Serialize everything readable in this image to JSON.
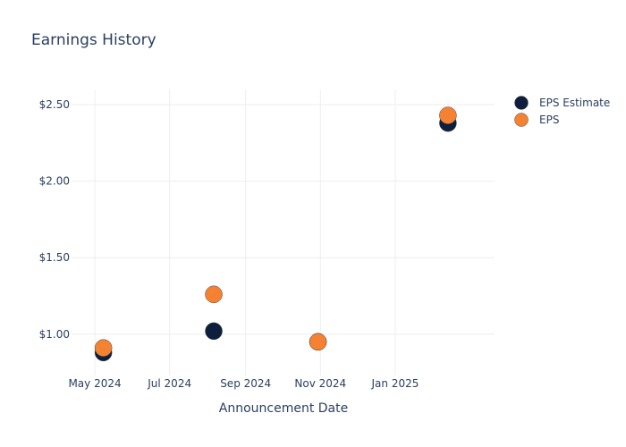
{
  "chart_data": {
    "type": "scatter",
    "title": "Earnings History",
    "xlabel": "Announcement Date",
    "ylabel": "",
    "x_type": "date",
    "xlim": [
      "2024-04-12",
      "2025-03-23"
    ],
    "ylim": [
      0.73,
      2.6
    ],
    "x_ticks": [
      {
        "date": "2024-05-01",
        "label": "May 2024"
      },
      {
        "date": "2024-07-01",
        "label": "Jul 2024"
      },
      {
        "date": "2024-09-01",
        "label": "Sep 2024"
      },
      {
        "date": "2024-11-01",
        "label": "Nov 2024"
      },
      {
        "date": "2025-01-01",
        "label": "Jan 2025"
      }
    ],
    "y_ticks": [
      {
        "value": 1.0,
        "label": "$1.00"
      },
      {
        "value": 1.5,
        "label": "$1.50"
      },
      {
        "value": 2.0,
        "label": "$2.00"
      },
      {
        "value": 2.5,
        "label": "$2.50"
      }
    ],
    "grid": true,
    "legend_position": "right",
    "series": [
      {
        "name": "EPS Estimate",
        "color": "#0d1f3c",
        "points": [
          {
            "x": "2024-05-08",
            "y": 0.88
          },
          {
            "x": "2024-08-06",
            "y": 1.02
          },
          {
            "x": "2024-10-30",
            "y": 0.95
          },
          {
            "x": "2025-02-13",
            "y": 2.38
          }
        ]
      },
      {
        "name": "EPS",
        "color": "#f58233",
        "points": [
          {
            "x": "2024-05-08",
            "y": 0.91
          },
          {
            "x": "2024-08-06",
            "y": 1.26
          },
          {
            "x": "2024-10-30",
            "y": 0.95
          },
          {
            "x": "2025-02-13",
            "y": 2.43
          }
        ]
      }
    ]
  }
}
